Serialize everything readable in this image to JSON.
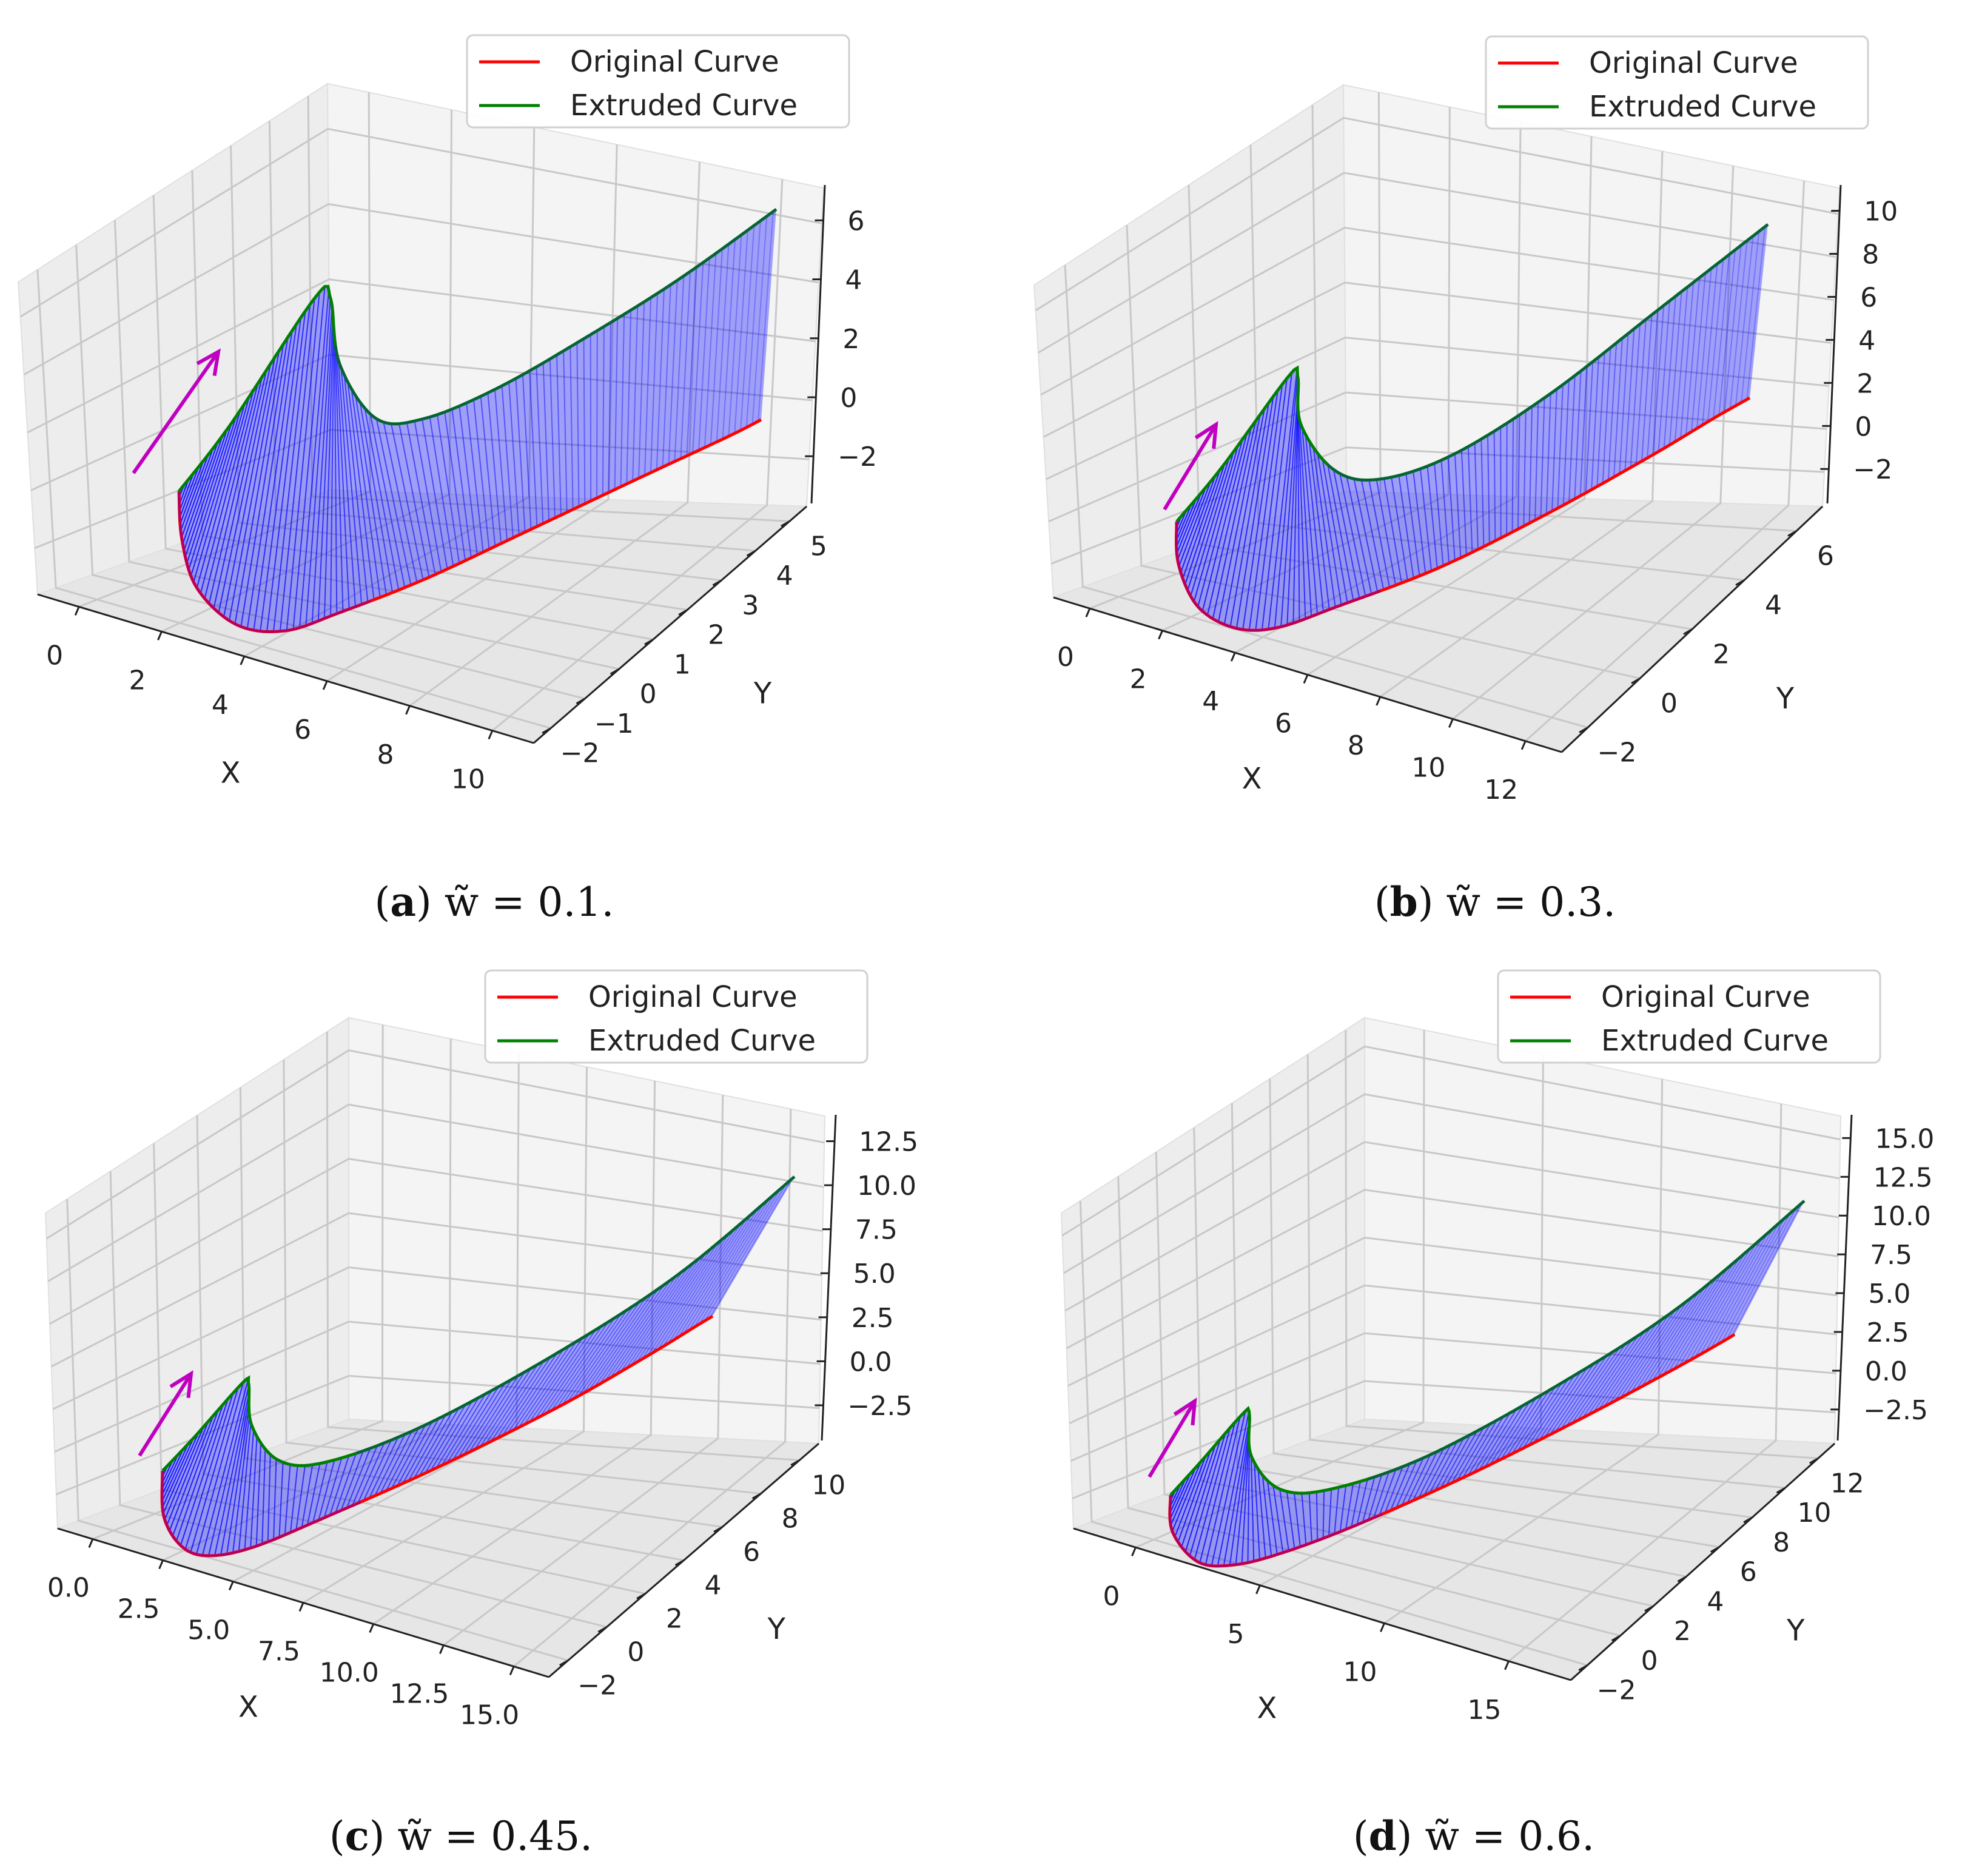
{
  "chart_data": [
    {
      "type": "3d-surface",
      "panel": "a",
      "caption": {
        "label": "a",
        "text": "w̃ = 0.1."
      },
      "legend": {
        "position": "top-right",
        "entries": [
          {
            "name": "Original Curve",
            "color": "#ff0000"
          },
          {
            "name": "Extruded Curve",
            "color": "#008000"
          }
        ]
      },
      "xlabel": "X",
      "ylabel": "Y",
      "zlabel": "",
      "x_ticks": [
        "0",
        "2",
        "4",
        "6",
        "8",
        "10"
      ],
      "y_ticks": [
        "−2",
        "−1",
        "0",
        "1",
        "2",
        "3",
        "4",
        "5"
      ],
      "z_ticks": [
        "6",
        "4",
        "2",
        "0",
        "−2"
      ],
      "xlim": [
        -1,
        10
      ],
      "ylim": [
        -2,
        5
      ],
      "zlim": [
        -3,
        7
      ],
      "w": 0.1,
      "surface_color": "#0000ff"
    },
    {
      "type": "3d-surface",
      "panel": "b",
      "caption": {
        "label": "b",
        "text": "w̃ = 0.3."
      },
      "legend": {
        "position": "top-right",
        "entries": [
          {
            "name": "Original Curve",
            "color": "#ff0000"
          },
          {
            "name": "Extruded Curve",
            "color": "#008000"
          }
        ]
      },
      "xlabel": "X",
      "ylabel": "Y",
      "zlabel": "",
      "x_ticks": [
        "0",
        "2",
        "4",
        "6",
        "8",
        "10",
        "12"
      ],
      "y_ticks": [
        "−2",
        "0",
        "2",
        "4",
        "6"
      ],
      "z_ticks": [
        "10",
        "8",
        "6",
        "4",
        "2",
        "0",
        "−2"
      ],
      "xlim": [
        -1,
        12
      ],
      "ylim": [
        -2,
        7
      ],
      "zlim": [
        -3,
        10
      ],
      "w": 0.3,
      "surface_color": "#0000ff"
    },
    {
      "type": "3d-surface",
      "panel": "c",
      "caption": {
        "label": "c",
        "text": "w̃ = 0.45."
      },
      "legend": {
        "position": "top-right",
        "entries": [
          {
            "name": "Original Curve",
            "color": "#ff0000"
          },
          {
            "name": "Extruded Curve",
            "color": "#008000"
          }
        ]
      },
      "xlabel": "X",
      "ylabel": "Y",
      "zlabel": "",
      "x_ticks": [
        "0.0",
        "2.5",
        "5.0",
        "7.5",
        "10.0",
        "12.5",
        "15.0"
      ],
      "y_ticks": [
        "−2",
        "0",
        "2",
        "4",
        "6",
        "8",
        "10"
      ],
      "z_ticks": [
        "12.5",
        "10.0",
        "7.5",
        "5.0",
        "2.5",
        "0.0",
        "−2.5"
      ],
      "xlim": [
        -1,
        15
      ],
      "ylim": [
        -2,
        10
      ],
      "zlim": [
        -3,
        13
      ],
      "w": 0.45,
      "surface_color": "#0000ff"
    },
    {
      "type": "3d-surface",
      "panel": "d",
      "caption": {
        "label": "d",
        "text": "w̃ = 0.6."
      },
      "legend": {
        "position": "top-right",
        "entries": [
          {
            "name": "Original Curve",
            "color": "#ff0000"
          },
          {
            "name": "Extruded Curve",
            "color": "#008000"
          }
        ]
      },
      "xlabel": "X",
      "ylabel": "Y",
      "zlabel": "",
      "x_ticks": [
        "0",
        "5",
        "10",
        "15"
      ],
      "y_ticks": [
        "−2",
        "0",
        "2",
        "4",
        "6",
        "8",
        "10",
        "12"
      ],
      "z_ticks": [
        "15.0",
        "12.5",
        "10.0",
        "7.5",
        "5.0",
        "2.5",
        "0.0",
        "−2.5"
      ],
      "xlim": [
        -1,
        18
      ],
      "ylim": [
        -2,
        12
      ],
      "zlim": [
        -3,
        15
      ],
      "w": 0.6,
      "surface_color": "#0000ff"
    }
  ],
  "colors": {
    "original": "#ff0000",
    "extruded": "#008000",
    "surface": "#0000ff",
    "arrow": "#c000c0",
    "pane": "#f2f2f2",
    "grid": "#c8c8c8"
  }
}
